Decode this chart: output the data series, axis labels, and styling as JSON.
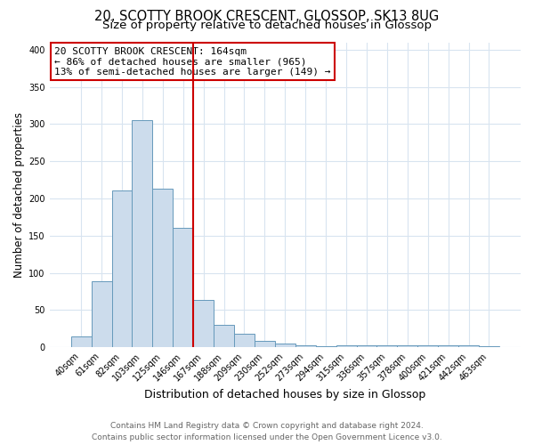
{
  "title": "20, SCOTTY BROOK CRESCENT, GLOSSOP, SK13 8UG",
  "subtitle": "Size of property relative to detached houses in Glossop",
  "xlabel": "Distribution of detached houses by size in Glossop",
  "ylabel": "Number of detached properties",
  "bar_labels": [
    "40sqm",
    "61sqm",
    "82sqm",
    "103sqm",
    "125sqm",
    "146sqm",
    "167sqm",
    "188sqm",
    "209sqm",
    "230sqm",
    "252sqm",
    "273sqm",
    "294sqm",
    "315sqm",
    "336sqm",
    "357sqm",
    "378sqm",
    "400sqm",
    "421sqm",
    "442sqm",
    "463sqm"
  ],
  "bar_values": [
    15,
    89,
    211,
    305,
    213,
    161,
    64,
    30,
    18,
    9,
    5,
    3,
    1,
    3,
    3,
    3,
    3,
    3,
    3,
    3,
    2
  ],
  "bar_color": "#ccdcec",
  "bar_edgecolor": "#6699bb",
  "vline_color": "#cc0000",
  "annotation_title": "20 SCOTTY BROOK CRESCENT: 164sqm",
  "annotation_line1": "← 86% of detached houses are smaller (965)",
  "annotation_line2": "13% of semi-detached houses are larger (149) →",
  "annotation_box_color": "#ffffff",
  "annotation_box_edgecolor": "#cc0000",
  "footer_line1": "Contains HM Land Registry data © Crown copyright and database right 2024.",
  "footer_line2": "Contains public sector information licensed under the Open Government Licence v3.0.",
  "ylim": [
    0,
    410
  ],
  "background_color": "#ffffff",
  "plot_background": "#ffffff",
  "grid_color": "#d8e4f0",
  "title_fontsize": 10.5,
  "subtitle_fontsize": 9.5,
  "tick_fontsize": 7,
  "ylabel_fontsize": 8.5,
  "xlabel_fontsize": 9,
  "footer_fontsize": 6.5
}
